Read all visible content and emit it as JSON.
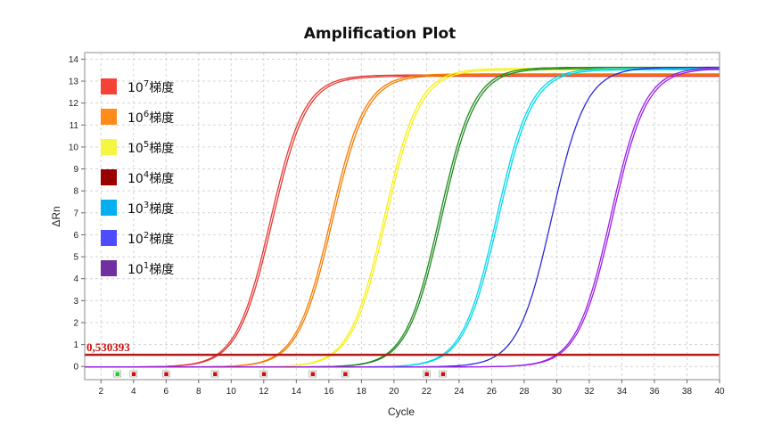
{
  "chart_data": {
    "type": "line",
    "title": "Amplification Plot",
    "xlabel": "Cycle",
    "ylabel": "ΔRn",
    "xlim": [
      1,
      40
    ],
    "ylim": [
      -0.6,
      14.3
    ],
    "xticks": [
      2,
      4,
      6,
      8,
      10,
      12,
      14,
      16,
      18,
      20,
      22,
      24,
      26,
      28,
      30,
      32,
      34,
      36,
      38,
      40
    ],
    "yticks": [
      0,
      1,
      2,
      3,
      4,
      5,
      6,
      7,
      8,
      9,
      10,
      11,
      12,
      13,
      14
    ],
    "grid": true,
    "legend_position": "top-left",
    "threshold": {
      "value": 0.530393,
      "label": "0,530393",
      "color": "#b01c1c"
    },
    "series": [
      {
        "name": "10⁷梯度",
        "base": "10",
        "exp": "7",
        "label_suffix": "梯度",
        "color": "#e53935",
        "swatch": "#f44336",
        "ct": 12.4,
        "plateau": 13.3,
        "slope": 1.05,
        "replicates": 2
      },
      {
        "name": "10⁶梯度",
        "base": "10",
        "exp": "6",
        "label_suffix": "梯度",
        "color": "#f57c00",
        "swatch": "#ff8c1a",
        "ct": 16.1,
        "plateau": 13.35,
        "slope": 1.05,
        "replicates": 2
      },
      {
        "name": "10⁵梯度",
        "base": "10",
        "exp": "5",
        "label_suffix": "梯度",
        "color": "#f7f014",
        "swatch": "#f5f543",
        "ct": 19.4,
        "plateau": 13.6,
        "slope": 1.05,
        "replicates": 2
      },
      {
        "name": "10⁴梯度",
        "base": "10",
        "exp": "4",
        "label_suffix": "梯度",
        "color": "#1e8a1e",
        "swatch": "#990000",
        "ct": 22.8,
        "plateau": 13.65,
        "slope": 1.05,
        "replicates": 2
      },
      {
        "name": "10³梯度",
        "base": "10",
        "exp": "3",
        "label_suffix": "梯度",
        "color": "#00d8e8",
        "swatch": "#00b0f0",
        "ct": 26.3,
        "plateau": 13.6,
        "slope": 1.05,
        "replicates": 2
      },
      {
        "name": "10²梯度",
        "base": "10",
        "exp": "2",
        "label_suffix": "梯度",
        "color": "#2a2ad8",
        "swatch": "#4d4dff",
        "ct": 29.7,
        "plateau": 13.65,
        "slope": 1.05,
        "replicates": 1
      },
      {
        "name": "10¹梯度",
        "base": "10",
        "exp": "1",
        "label_suffix": "梯度",
        "color": "#9b1ee8",
        "swatch": "#7030a0",
        "ct": 33.3,
        "plateau": 13.65,
        "slope": 1.05,
        "replicates": 2
      }
    ],
    "baseline_markers": [
      {
        "x": 3,
        "color": "#22cc22"
      },
      {
        "x": 4,
        "color": "#cc1111"
      },
      {
        "x": 6,
        "color": "#cc1111"
      },
      {
        "x": 9,
        "color": "#cc1111"
      },
      {
        "x": 12,
        "color": "#cc1111"
      },
      {
        "x": 15,
        "color": "#cc1111"
      },
      {
        "x": 17,
        "color": "#cc1111"
      },
      {
        "x": 22,
        "color": "#cc1111"
      },
      {
        "x": 23,
        "color": "#cc1111"
      }
    ]
  }
}
